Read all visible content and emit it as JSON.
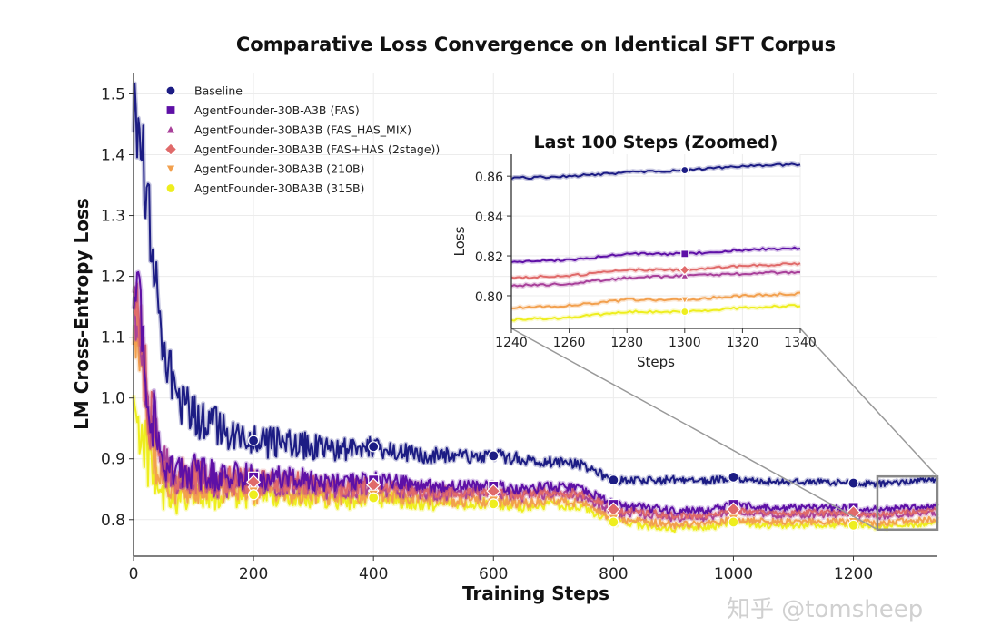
{
  "chart_data": {
    "type": "line",
    "title": "Comparative Loss Convergence on Identical SFT Corpus",
    "xlabel": "Training Steps",
    "ylabel": "LM Cross-Entropy Loss",
    "xlim": [
      0,
      1340
    ],
    "ylim": [
      0.74,
      1.535
    ],
    "xticks": [
      0,
      200,
      400,
      600,
      800,
      1000,
      1200
    ],
    "yticks": [
      0.8,
      0.9,
      1.0,
      1.1,
      1.2,
      1.3,
      1.4,
      1.5
    ],
    "grid": true,
    "legend_placement": "top-left",
    "marker_steps": [
      200,
      400,
      600,
      800,
      1000,
      1200
    ],
    "x": [
      0,
      10,
      25,
      50,
      75,
      100,
      150,
      200,
      250,
      300,
      350,
      400,
      450,
      500,
      550,
      600,
      650,
      700,
      750,
      800,
      850,
      900,
      950,
      1000,
      1050,
      1100,
      1150,
      1200,
      1240,
      1260,
      1280,
      1300,
      1320,
      1340
    ],
    "series": [
      {
        "name": "Baseline",
        "color": "#1c1c84",
        "marker": "circle",
        "values": [
          1.48,
          1.45,
          1.3,
          1.08,
          1.0,
          0.97,
          0.95,
          0.93,
          0.925,
          0.92,
          0.915,
          0.92,
          0.91,
          0.905,
          0.905,
          0.905,
          0.9,
          0.895,
          0.89,
          0.865,
          0.865,
          0.865,
          0.862,
          0.87,
          0.862,
          0.862,
          0.862,
          0.86,
          0.859,
          0.86,
          0.862,
          0.863,
          0.865,
          0.866
        ]
      },
      {
        "name": "AgentFounder-30B-A3B (FAS)",
        "color": "#5e10a6",
        "marker": "square",
        "values": [
          1.16,
          1.15,
          1.0,
          0.9,
          0.88,
          0.88,
          0.87,
          0.87,
          0.87,
          0.865,
          0.86,
          0.865,
          0.86,
          0.855,
          0.855,
          0.855,
          0.85,
          0.855,
          0.85,
          0.825,
          0.82,
          0.815,
          0.815,
          0.825,
          0.82,
          0.82,
          0.82,
          0.82,
          0.817,
          0.818,
          0.821,
          0.821,
          0.823,
          0.824
        ]
      },
      {
        "name": "AgentFounder-30BA3B (FAS_HAS_MIX)",
        "color": "#a8409a",
        "marker": "triangle-up",
        "values": [
          1.15,
          1.14,
          0.99,
          0.89,
          0.87,
          0.87,
          0.86,
          0.86,
          0.86,
          0.853,
          0.848,
          0.853,
          0.848,
          0.843,
          0.843,
          0.843,
          0.838,
          0.843,
          0.838,
          0.813,
          0.808,
          0.803,
          0.803,
          0.813,
          0.808,
          0.808,
          0.808,
          0.808,
          0.805,
          0.806,
          0.809,
          0.81,
          0.811,
          0.812
        ]
      },
      {
        "name": "AgentFounder-30BA3B (FAS+HAS (2stage))",
        "color": "#e06a6a",
        "marker": "diamond",
        "values": [
          1.14,
          1.13,
          0.98,
          0.89,
          0.87,
          0.87,
          0.862,
          0.862,
          0.862,
          0.857,
          0.852,
          0.857,
          0.852,
          0.847,
          0.847,
          0.847,
          0.842,
          0.847,
          0.842,
          0.817,
          0.812,
          0.807,
          0.807,
          0.817,
          0.812,
          0.812,
          0.812,
          0.812,
          0.809,
          0.81,
          0.813,
          0.813,
          0.815,
          0.816
        ]
      },
      {
        "name": "AgentFounder-30BA3B (210B)",
        "color": "#f2a04e",
        "marker": "triangle-down",
        "values": [
          1.1,
          1.08,
          0.95,
          0.87,
          0.85,
          0.85,
          0.847,
          0.847,
          0.847,
          0.842,
          0.837,
          0.842,
          0.837,
          0.832,
          0.832,
          0.832,
          0.827,
          0.832,
          0.827,
          0.802,
          0.797,
          0.792,
          0.792,
          0.802,
          0.797,
          0.797,
          0.797,
          0.797,
          0.794,
          0.795,
          0.798,
          0.798,
          0.8,
          0.801
        ]
      },
      {
        "name": "AgentFounder-30BA3B (315B)",
        "color": "#eeee1e",
        "marker": "circle",
        "values": [
          0.98,
          0.96,
          0.9,
          0.85,
          0.84,
          0.84,
          0.841,
          0.841,
          0.841,
          0.836,
          0.831,
          0.836,
          0.831,
          0.826,
          0.826,
          0.826,
          0.821,
          0.826,
          0.821,
          0.796,
          0.791,
          0.786,
          0.786,
          0.796,
          0.791,
          0.791,
          0.791,
          0.791,
          0.788,
          0.789,
          0.792,
          0.792,
          0.794,
          0.795
        ]
      }
    ],
    "inset": {
      "title": "Last 100 Steps (Zoomed)",
      "xlabel": "Steps",
      "ylabel": "Loss",
      "xlim": [
        1240,
        1340
      ],
      "ylim": [
        0.7836,
        0.871
      ],
      "xticks": [
        1240,
        1260,
        1280,
        1300,
        1320,
        1340
      ],
      "yticks": [
        0.8,
        0.82,
        0.84,
        0.86
      ],
      "marker_steps": [
        1300
      ]
    }
  },
  "watermark": "知乎 @tomsheep"
}
